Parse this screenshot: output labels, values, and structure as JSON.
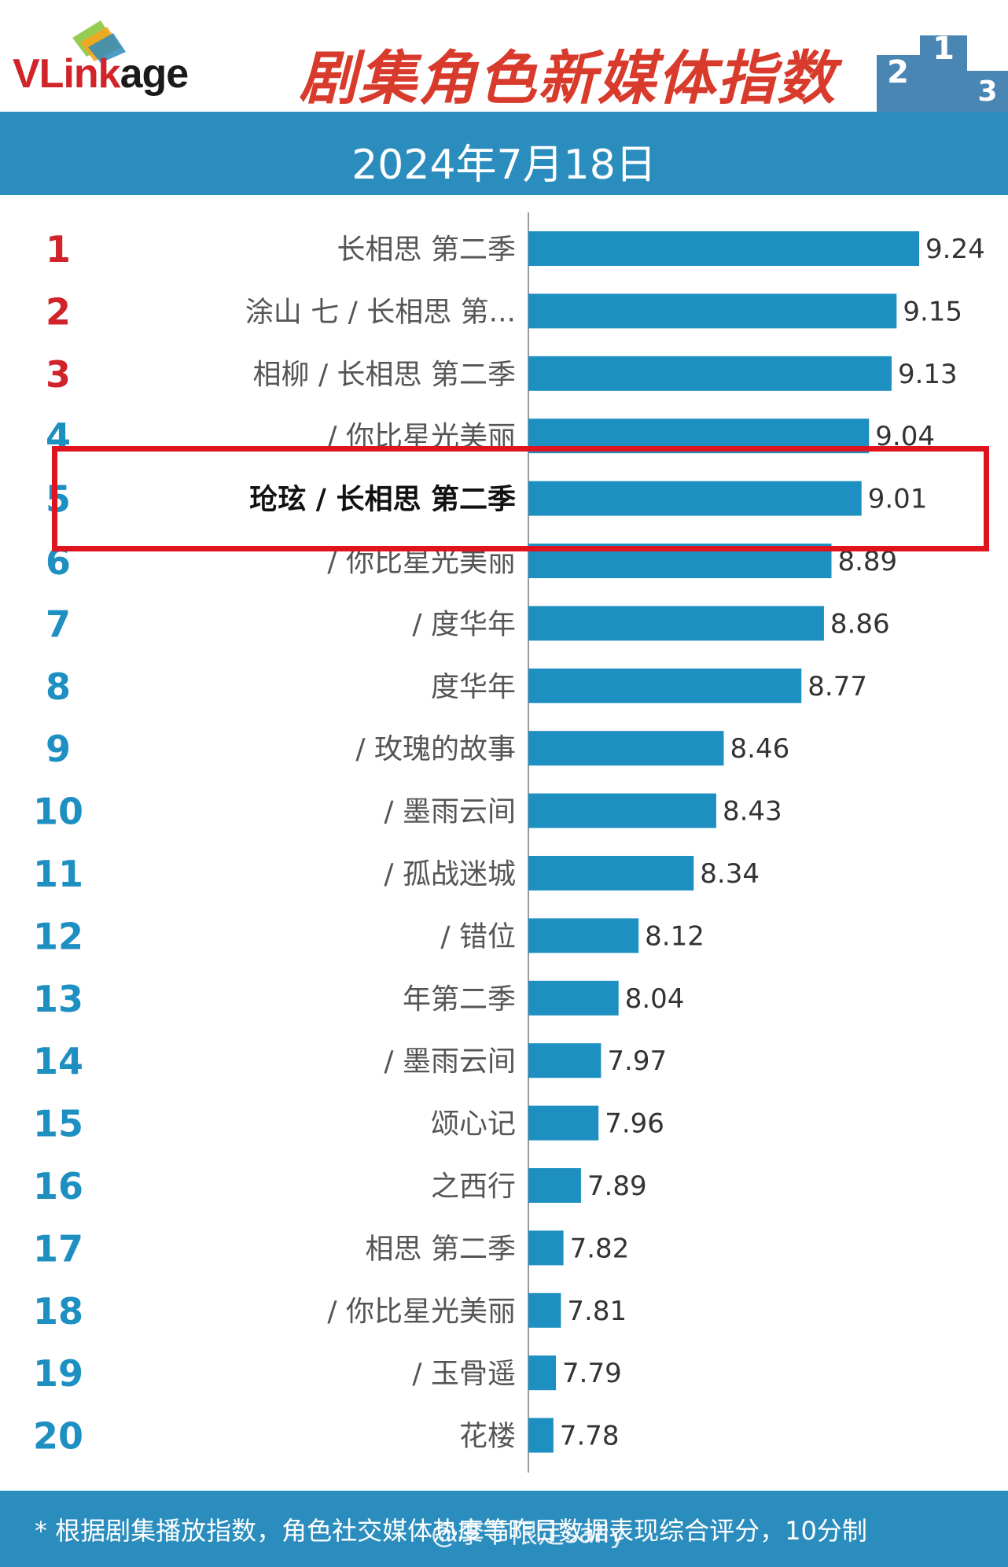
{
  "header": {
    "logo_text_v": "VLink",
    "logo_text_rest": "age",
    "title": "剧集角色新媒体指数",
    "podium_numbers": [
      "2",
      "1",
      "3"
    ]
  },
  "date": "2024年7月18日",
  "chart_data": {
    "type": "bar",
    "orientation": "horizontal",
    "ranks": [
      "1",
      "2",
      "3",
      "4",
      "5",
      "6",
      "7",
      "8",
      "9",
      "10",
      "11",
      "12",
      "13",
      "14",
      "15",
      "16",
      "17",
      "18",
      "19",
      "20"
    ],
    "categories": [
      "长相思 第二季",
      "涂山 七 / 长相思 第...",
      "相柳 / 长相思 第二季",
      "/ 你比星光美丽",
      "玱玹 / 长相思 第二季",
      "/ 你比星光美丽",
      "/ 度华年",
      "度华年",
      "/ 玫瑰的故事",
      "/ 墨雨云间",
      "/ 孤战迷城",
      "/ 错位",
      "年第二季",
      "/ 墨雨云间",
      "颂心记",
      "之西行",
      "相思 第二季",
      "/ 你比星光美丽",
      "/ 玉骨遥",
      "花楼"
    ],
    "values": [
      9.24,
      9.15,
      9.13,
      9.04,
      9.01,
      8.89,
      8.86,
      8.77,
      8.46,
      8.43,
      8.34,
      8.12,
      8.04,
      7.97,
      7.96,
      7.89,
      7.82,
      7.81,
      7.79,
      7.78
    ],
    "value_labels": [
      "9.24",
      "9.15",
      "9.13",
      "9.04",
      "9.01",
      "8.89",
      "8.86",
      "8.77",
      "8.46",
      "8.43",
      "8.34",
      "8.12",
      "8.04",
      "7.97",
      "7.96",
      "7.89",
      "7.82",
      "7.81",
      "7.79",
      "7.78"
    ],
    "xlim": [
      7.68,
      9.24
    ],
    "highlighted_rank": "5",
    "bar_color": "#1e8fc1",
    "rank_colors": {
      "top3": "#d0232a",
      "rest": "#1e8fc1"
    },
    "highlight_color": "#e0141e"
  },
  "footer": {
    "note": "* 根据剧集播放指数，角色社交媒体热度等昨日数据表现综合评分，10分制",
    "watermark": "@李节限定sally"
  }
}
